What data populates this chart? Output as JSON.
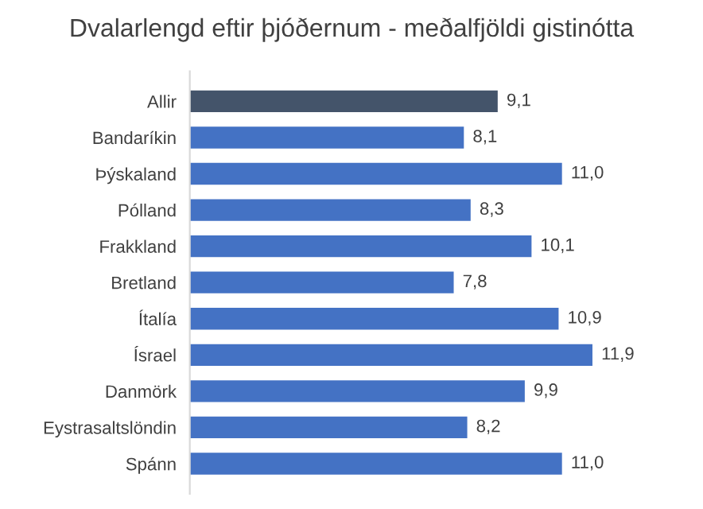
{
  "chart_data": {
    "type": "bar",
    "orientation": "horizontal",
    "title": "Dvalarlengd eftir þjóðernum - meðalfjöldi gistinótta",
    "categories": [
      "Allir",
      "Bandaríkin",
      "Þýskaland",
      "Pólland",
      "Frakkland",
      "Bretland",
      "Ítalía",
      "Ísrael",
      "Danmörk",
      "Eystrasaltslöndin",
      "Spánn"
    ],
    "values": [
      9.1,
      8.1,
      11.0,
      8.3,
      10.1,
      7.8,
      10.9,
      11.9,
      9.9,
      8.2,
      11.0
    ],
    "value_labels": [
      "9,1",
      "8,1",
      "11,0",
      "8,3",
      "10,1",
      "7,8",
      "10,9",
      "11,9",
      "9,9",
      "8,2",
      "11,0"
    ],
    "colors": [
      "#44546a",
      "#4472c4",
      "#4472c4",
      "#4472c4",
      "#4472c4",
      "#4472c4",
      "#4472c4",
      "#4472c4",
      "#4472c4",
      "#4472c4",
      "#4472c4"
    ],
    "grid": false,
    "legend": false
  }
}
